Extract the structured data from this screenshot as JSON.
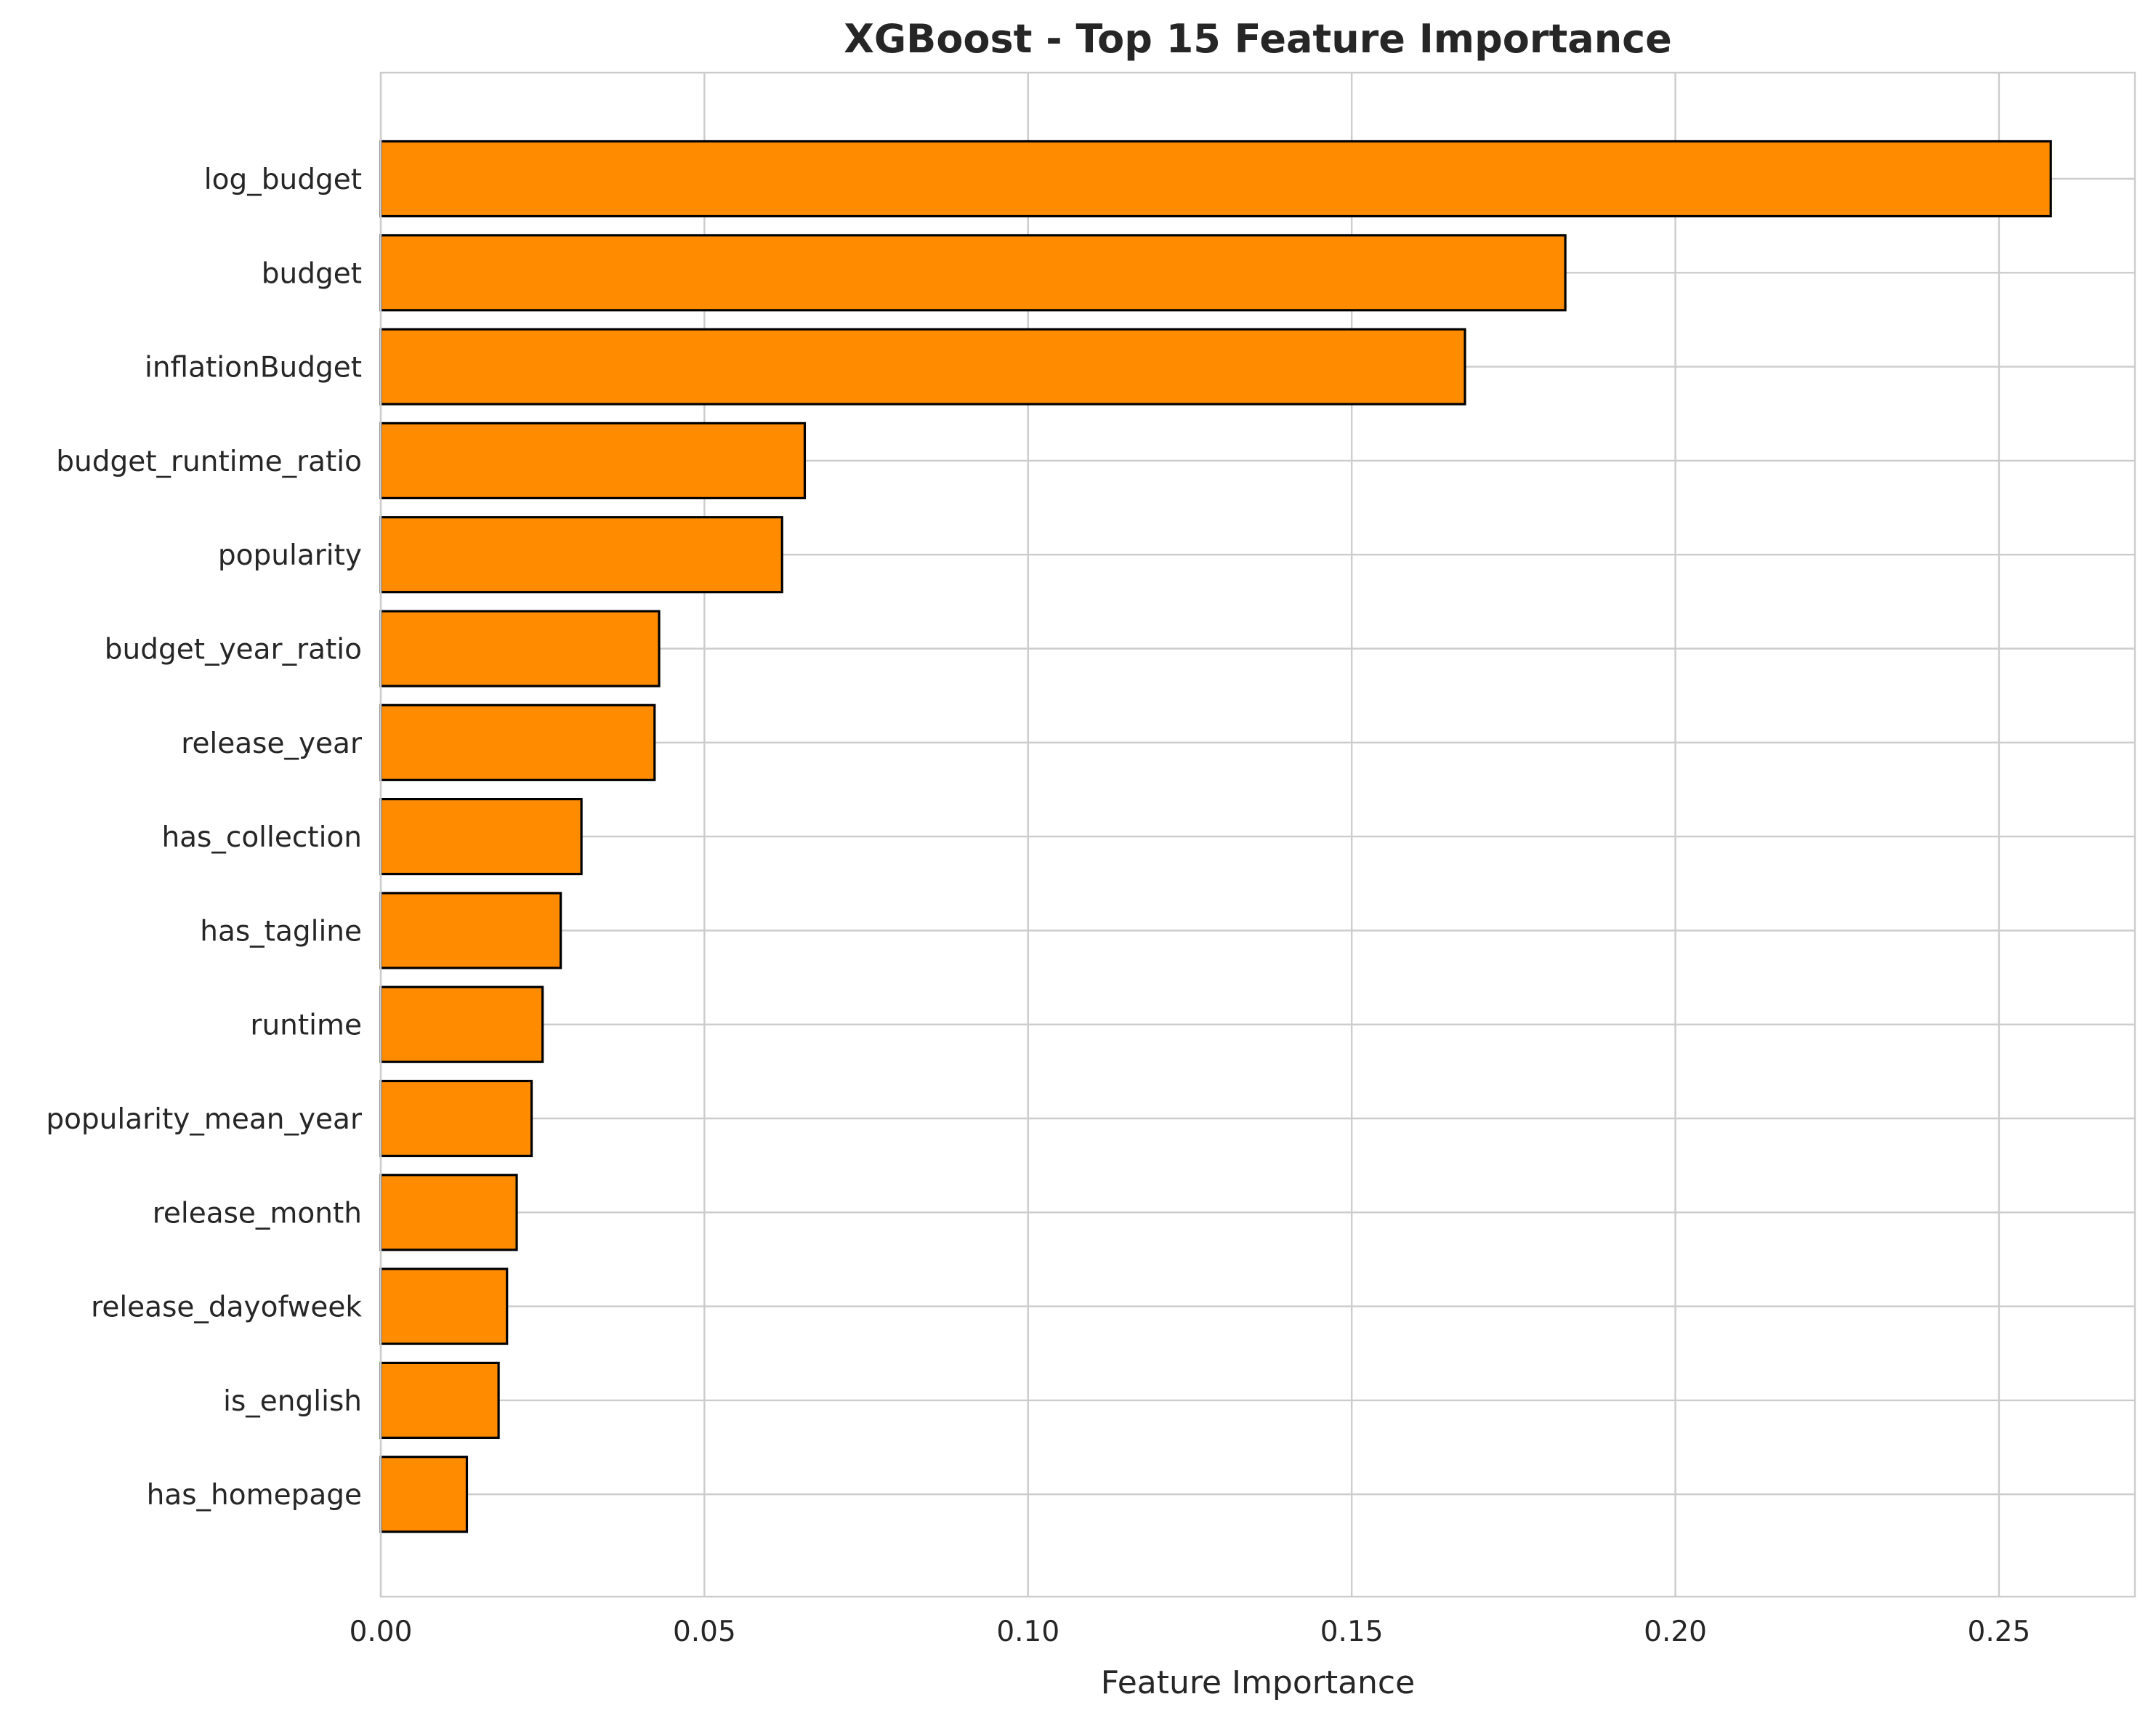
{
  "chart_data": {
    "type": "bar",
    "orientation": "horizontal",
    "title": "XGBoost - Top 15 Feature Importance",
    "xlabel": "Feature Importance",
    "ylabel": "",
    "xlim": [
      0,
      0.271
    ],
    "xticks": [
      0.0,
      0.05,
      0.1,
      0.15,
      0.2,
      0.25
    ],
    "xtick_labels": [
      "0.00",
      "0.05",
      "0.10",
      "0.15",
      "0.20",
      "0.25"
    ],
    "grid": true,
    "categories": [
      "log_budget",
      "budget",
      "inflationBudget",
      "budget_runtime_ratio",
      "popularity",
      "budget_year_ratio",
      "release_year",
      "has_collection",
      "has_tagline",
      "runtime",
      "popularity_mean_year",
      "release_month",
      "release_dayofweek",
      "is_english",
      "has_homepage"
    ],
    "values": [
      0.258,
      0.183,
      0.1675,
      0.0655,
      0.062,
      0.043,
      0.0423,
      0.031,
      0.0278,
      0.025,
      0.0233,
      0.021,
      0.0195,
      0.0182,
      0.0133
    ],
    "bar_color": "#ff8c00",
    "bar_edge_color": "#000000"
  }
}
